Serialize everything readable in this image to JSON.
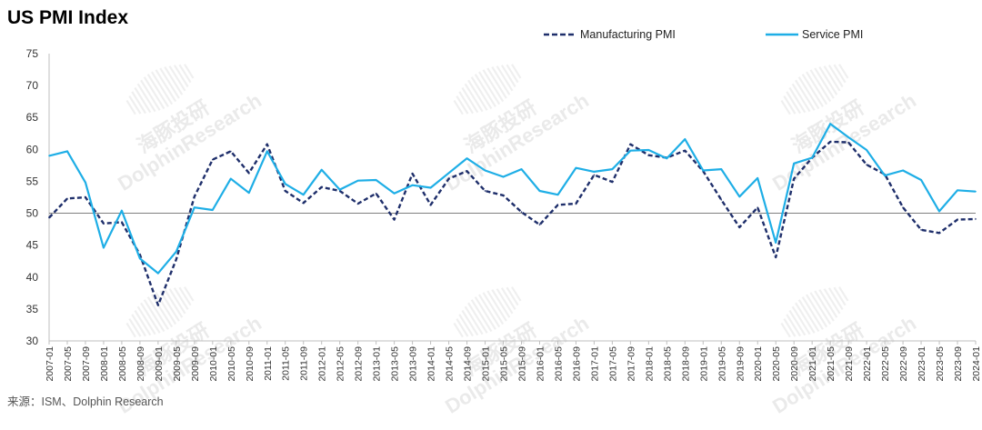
{
  "title": "US PMI Index",
  "source": "来源：ISM、Dolphin Research",
  "watermark": {
    "cn": "海豚投研",
    "en": "DolphinResearch"
  },
  "chart_data": {
    "type": "line",
    "title": "US PMI Index",
    "ylim": [
      30,
      75
    ],
    "yticks": [
      30,
      35,
      40,
      45,
      50,
      55,
      60,
      65,
      70,
      75
    ],
    "reference_line": 50,
    "grid": false,
    "legend_position": "top-right",
    "x_start": "2007-01",
    "x_tick_step_months": 4,
    "x": [
      "2007-01",
      "2007-05",
      "2007-09",
      "2008-01",
      "2008-05",
      "2008-09",
      "2009-01",
      "2009-05",
      "2009-09",
      "2010-01",
      "2010-05",
      "2010-09",
      "2011-01",
      "2011-05",
      "2011-09",
      "2012-01",
      "2012-05",
      "2012-09",
      "2013-01",
      "2013-05",
      "2013-09",
      "2014-01",
      "2014-05",
      "2014-09",
      "2015-01",
      "2015-05",
      "2015-09",
      "2016-01",
      "2016-05",
      "2016-09",
      "2017-01",
      "2017-05",
      "2017-09",
      "2018-01",
      "2018-05",
      "2018-09",
      "2019-01",
      "2019-05",
      "2019-09",
      "2020-01",
      "2020-05",
      "2020-09",
      "2021-01",
      "2021-05",
      "2021-09",
      "2022-01",
      "2022-05",
      "2022-09",
      "2023-01",
      "2023-05",
      "2023-09",
      "2024-01"
    ],
    "series": [
      {
        "name": "Manufacturing PMI",
        "color": "#1f2f6b",
        "style": "dashed",
        "values": [
          49.3,
          52.3,
          52.5,
          48.4,
          48.6,
          43.5,
          35.6,
          42.8,
          52.6,
          58.4,
          59.7,
          56.3,
          60.8,
          53.5,
          51.6,
          54.1,
          53.5,
          51.5,
          53.1,
          49.0,
          56.2,
          51.3,
          55.4,
          56.6,
          53.5,
          52.8,
          50.2,
          48.2,
          51.3,
          51.5,
          56.0,
          54.9,
          60.8,
          59.1,
          58.7,
          59.8,
          56.6,
          52.1,
          47.8,
          50.9,
          43.1,
          55.4,
          58.7,
          61.2,
          61.1,
          57.6,
          56.1,
          50.9,
          47.4,
          46.9,
          49.0,
          49.1
        ]
      },
      {
        "name": "Service PMI",
        "color": "#1eaee6",
        "style": "solid",
        "values": [
          59.0,
          59.7,
          54.8,
          44.6,
          50.4,
          42.9,
          40.6,
          44.0,
          50.9,
          50.5,
          55.4,
          53.2,
          59.7,
          54.6,
          52.9,
          56.8,
          53.7,
          55.1,
          55.2,
          53.1,
          54.4,
          54.0,
          56.3,
          58.6,
          56.7,
          55.7,
          56.9,
          53.5,
          52.9,
          57.1,
          56.5,
          56.9,
          59.8,
          59.9,
          58.6,
          61.6,
          56.7,
          56.9,
          52.6,
          55.5,
          45.4,
          57.8,
          58.7,
          64.0,
          61.9,
          59.9,
          55.9,
          56.7,
          55.2,
          50.3,
          53.6,
          53.4
        ]
      }
    ]
  }
}
